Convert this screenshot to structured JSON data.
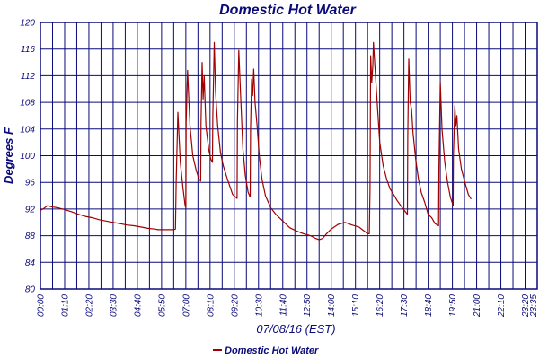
{
  "chart_data": {
    "type": "line",
    "title": "Domestic Hot Water",
    "xlabel": "07/08/16 (EST)",
    "ylabel": "Degrees F",
    "ylim": [
      80,
      120
    ],
    "yticks": [
      80,
      84,
      88,
      92,
      96,
      100,
      104,
      108,
      112,
      116,
      120
    ],
    "xlim": [
      0,
      1435
    ],
    "xtick_labels": [
      "00:00",
      "01:10",
      "02:20",
      "03:30",
      "04:40",
      "05:50",
      "07:00",
      "08:10",
      "09:20",
      "10:30",
      "11:40",
      "12:50",
      "14:00",
      "15:10",
      "16:20",
      "17:30",
      "18:40",
      "19:50",
      "21:00",
      "22:10",
      "23:20",
      "23:35"
    ],
    "x_unit": "minutes since 00:00",
    "grid": true,
    "legend_position": "bottom-center",
    "colors": {
      "series": "#a00000",
      "grid": "#0a0a78",
      "text": "#0a0a78",
      "background": "#ffffff"
    },
    "series": [
      {
        "name": "Domestic Hot Water",
        "points": [
          [
            0,
            91.8
          ],
          [
            10,
            92.1
          ],
          [
            20,
            92.5
          ],
          [
            35,
            92.3
          ],
          [
            50,
            92.2
          ],
          [
            70,
            91.9
          ],
          [
            90,
            91.6
          ],
          [
            110,
            91.2
          ],
          [
            130,
            90.9
          ],
          [
            150,
            90.7
          ],
          [
            170,
            90.4
          ],
          [
            190,
            90.2
          ],
          [
            210,
            90.0
          ],
          [
            230,
            89.8
          ],
          [
            250,
            89.6
          ],
          [
            270,
            89.5
          ],
          [
            290,
            89.3
          ],
          [
            310,
            89.1
          ],
          [
            330,
            89.0
          ],
          [
            340,
            88.9
          ],
          [
            370,
            88.9
          ],
          [
            385,
            88.9
          ],
          [
            390,
            89.0
          ],
          [
            392,
            96.0
          ],
          [
            397,
            106.5
          ],
          [
            404,
            99.0
          ],
          [
            412,
            95.0
          ],
          [
            418,
            92.5
          ],
          [
            420,
            92.2
          ],
          [
            421,
            105.0
          ],
          [
            425,
            112.8
          ],
          [
            432,
            104.5
          ],
          [
            440,
            100.0
          ],
          [
            450,
            97.8
          ],
          [
            458,
            96.5
          ],
          [
            463,
            96.2
          ],
          [
            464,
            105.0
          ],
          [
            467,
            114.0
          ],
          [
            470,
            108.5
          ],
          [
            473,
            112.0
          ],
          [
            478,
            104.5
          ],
          [
            486,
            101.0
          ],
          [
            492,
            99.5
          ],
          [
            497,
            99.0
          ],
          [
            498,
            106.0
          ],
          [
            502,
            117.0
          ],
          [
            506,
            109.5
          ],
          [
            512,
            104.5
          ],
          [
            520,
            100.5
          ],
          [
            528,
            98.5
          ],
          [
            540,
            96.5
          ],
          [
            555,
            94.2
          ],
          [
            568,
            93.6
          ],
          [
            569,
            105.0
          ],
          [
            573,
            115.8
          ],
          [
            578,
            109.5
          ],
          [
            585,
            101.0
          ],
          [
            592,
            97.0
          ],
          [
            600,
            94.5
          ],
          [
            606,
            93.8
          ],
          [
            607,
            104.0
          ],
          [
            610,
            111.5
          ],
          [
            613,
            109.0
          ],
          [
            616,
            113.0
          ],
          [
            620,
            108.0
          ],
          [
            626,
            104.5
          ],
          [
            632,
            100.0
          ],
          [
            640,
            96.5
          ],
          [
            650,
            94.0
          ],
          [
            665,
            92.2
          ],
          [
            680,
            91.2
          ],
          [
            700,
            90.2
          ],
          [
            720,
            89.2
          ],
          [
            740,
            88.7
          ],
          [
            760,
            88.3
          ],
          [
            780,
            88.0
          ],
          [
            795,
            87.6
          ],
          [
            805,
            87.4
          ],
          [
            815,
            87.6
          ],
          [
            825,
            88.2
          ],
          [
            840,
            89.0
          ],
          [
            860,
            89.7
          ],
          [
            880,
            90.0
          ],
          [
            900,
            89.6
          ],
          [
            920,
            89.3
          ],
          [
            935,
            88.7
          ],
          [
            945,
            88.3
          ],
          [
            950,
            88.3
          ],
          [
            952,
            95.0
          ],
          [
            954,
            115.0
          ],
          [
            957,
            111.0
          ],
          [
            960,
            113.5
          ],
          [
            962,
            117.0
          ],
          [
            966,
            113.5
          ],
          [
            972,
            108.5
          ],
          [
            980,
            102.0
          ],
          [
            990,
            98.5
          ],
          [
            1000,
            96.5
          ],
          [
            1010,
            95.0
          ],
          [
            1020,
            94.2
          ],
          [
            1030,
            93.3
          ],
          [
            1045,
            92.2
          ],
          [
            1060,
            91.2
          ],
          [
            1061,
            103.0
          ],
          [
            1064,
            114.5
          ],
          [
            1068,
            108.0
          ],
          [
            1072,
            107.0
          ],
          [
            1076,
            103.5
          ],
          [
            1084,
            99.5
          ],
          [
            1092,
            96.5
          ],
          [
            1100,
            94.5
          ],
          [
            1110,
            93.0
          ],
          [
            1120,
            91.2
          ],
          [
            1130,
            90.7
          ],
          [
            1140,
            89.8
          ],
          [
            1150,
            89.5
          ],
          [
            1151,
            98.0
          ],
          [
            1155,
            111.0
          ],
          [
            1160,
            104.0
          ],
          [
            1168,
            99.0
          ],
          [
            1176,
            96.0
          ],
          [
            1184,
            93.8
          ],
          [
            1192,
            92.5
          ],
          [
            1193,
            100.0
          ],
          [
            1197,
            107.5
          ],
          [
            1200,
            104.5
          ],
          [
            1203,
            106.0
          ],
          [
            1208,
            101.0
          ],
          [
            1216,
            98.0
          ],
          [
            1226,
            96.0
          ],
          [
            1236,
            94.2
          ],
          [
            1244,
            93.5
          ]
        ]
      }
    ]
  }
}
